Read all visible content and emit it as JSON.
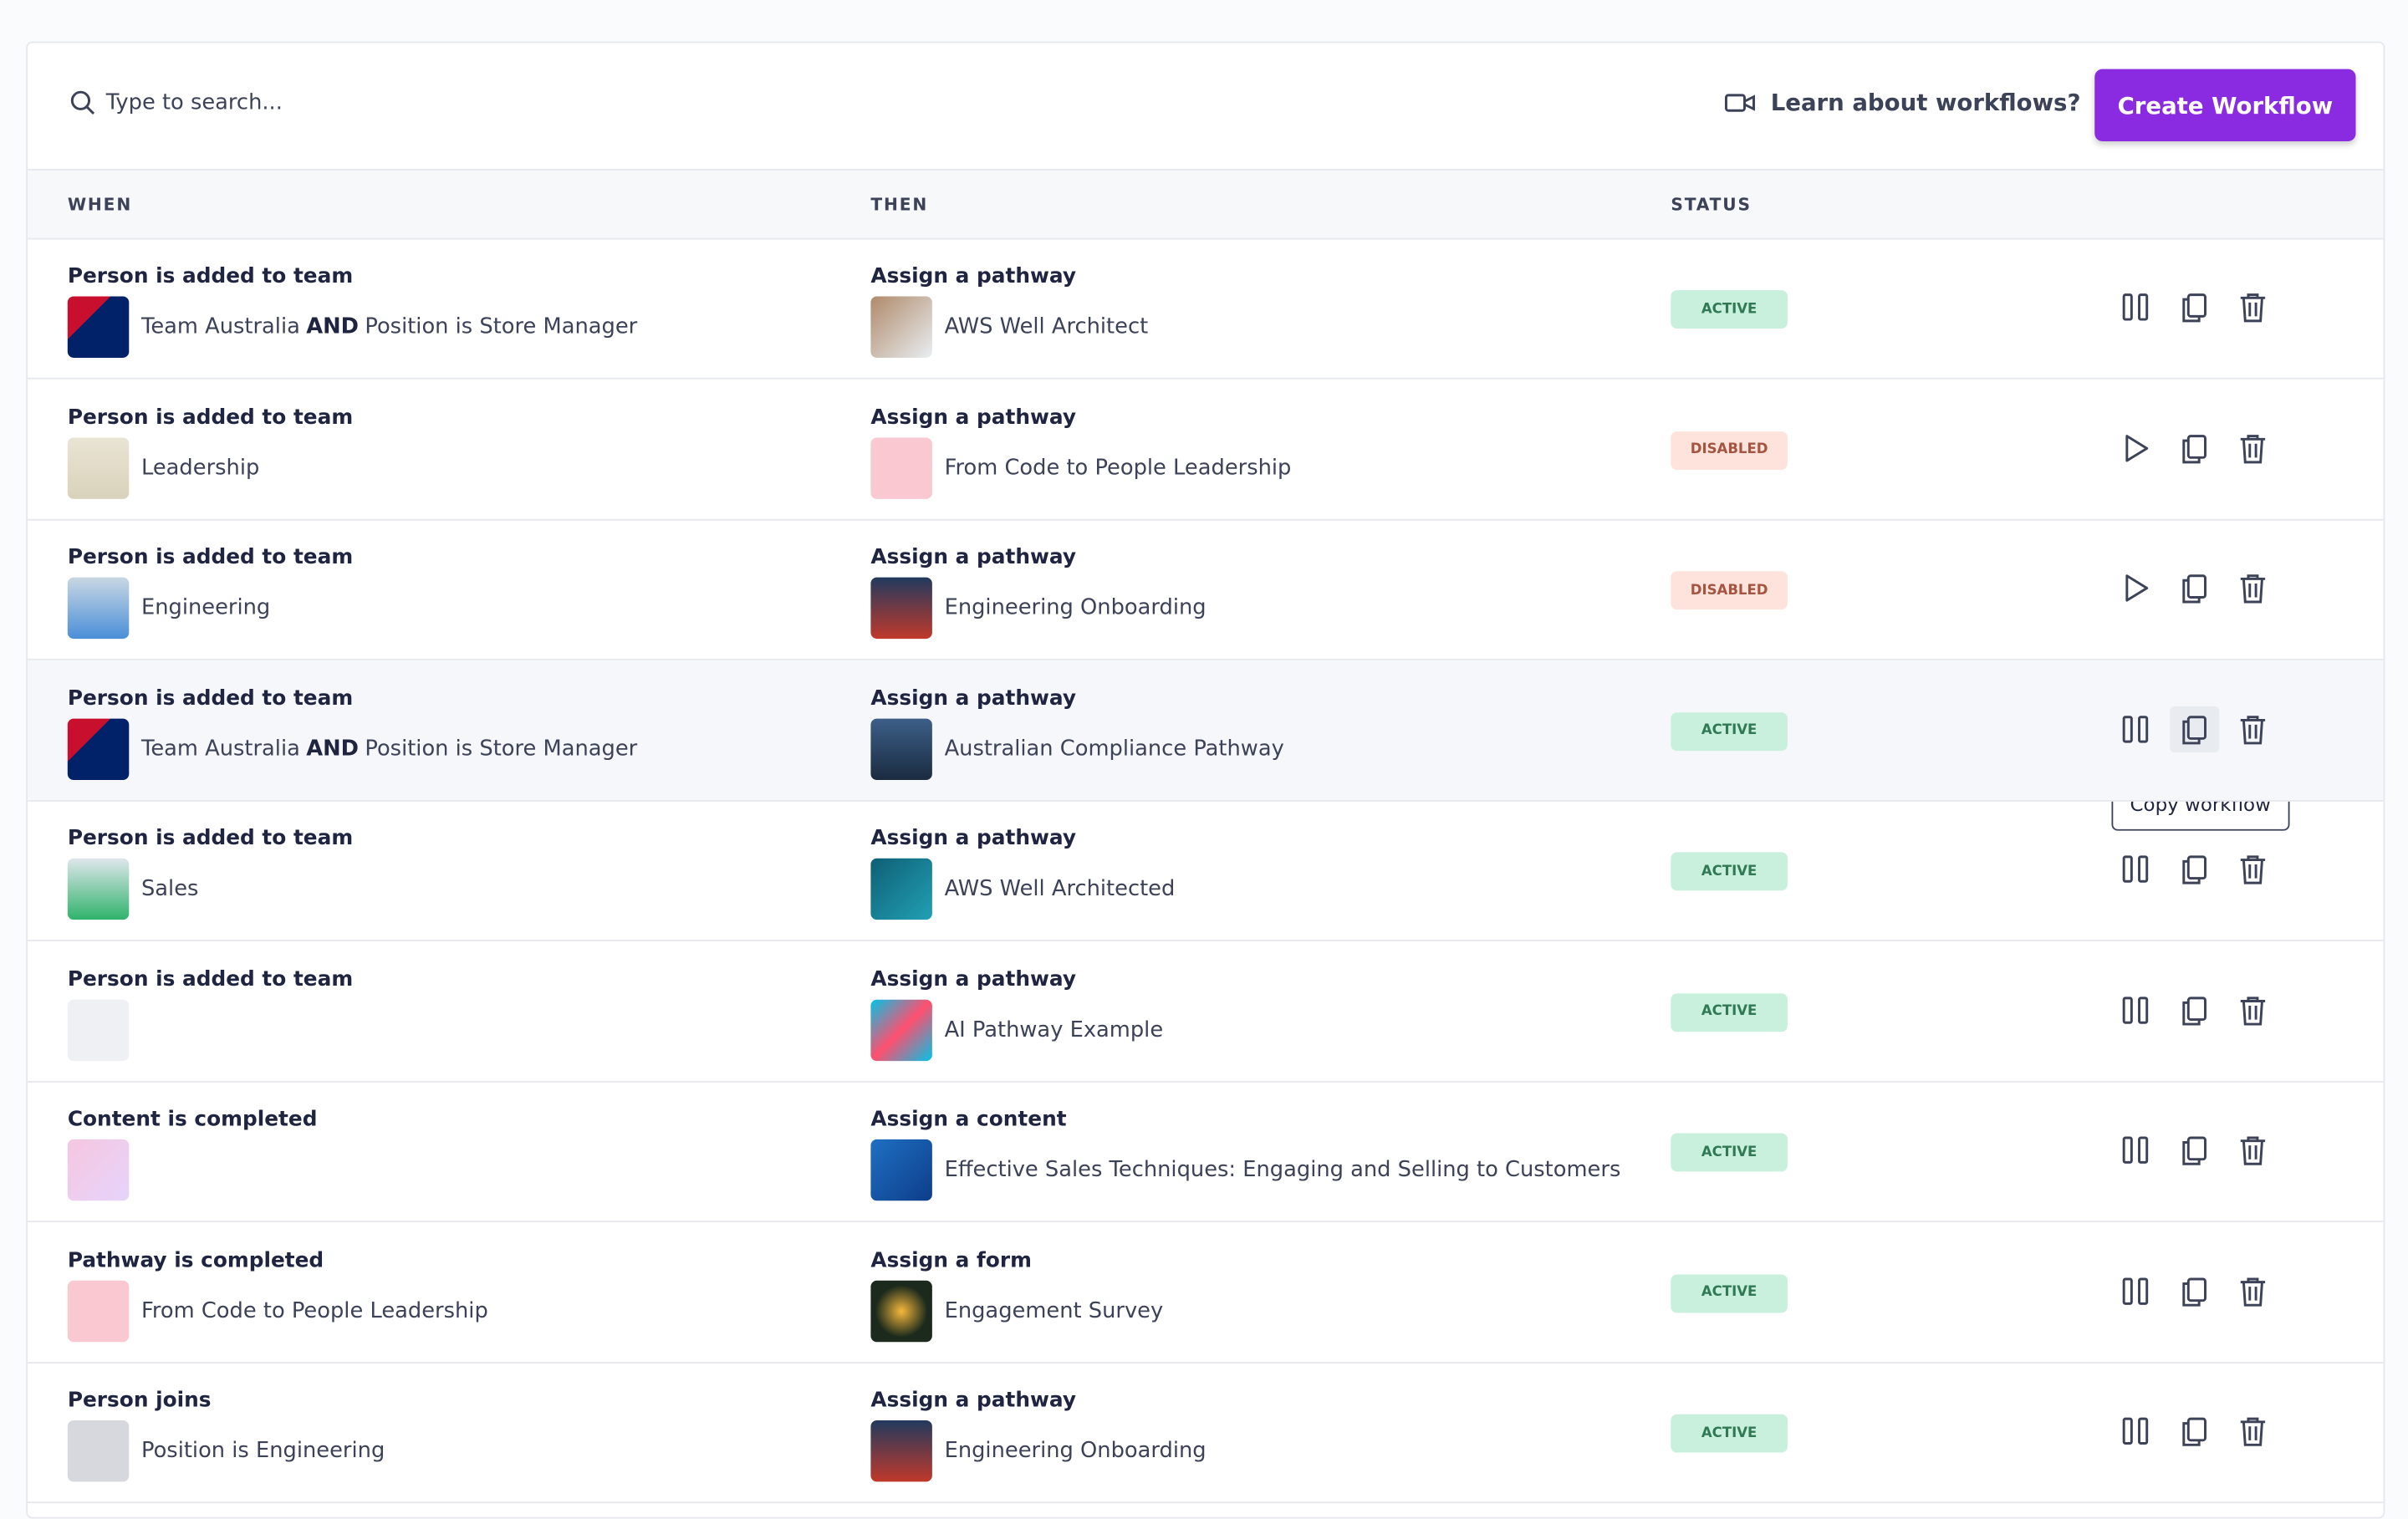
{
  "toolbar": {
    "search_placeholder": "Type to search...",
    "learn_link": "Learn about workflows?",
    "create_button": "Create Workflow"
  },
  "table": {
    "headers": [
      "WHEN",
      "THEN",
      "STATUS"
    ],
    "rows": [
      {
        "trigger": "Person is added to team",
        "trigger_detail": [
          {
            "text": "Team Australia"
          },
          {
            "text": "AND",
            "strong": true
          },
          {
            "text": "Position is Store Manager"
          }
        ],
        "action": "Assign a pathway",
        "action_detail": "AWS Well Architect",
        "status": "ACTIVE",
        "control": "pause"
      },
      {
        "trigger": "Person is added to team",
        "trigger_detail": [
          {
            "text": "Leadership"
          }
        ],
        "action": "Assign a pathway",
        "action_detail": "From Code to People Leadership",
        "status": "DISABLED",
        "control": "play"
      },
      {
        "trigger": "Person is added to team",
        "trigger_detail": [
          {
            "text": "Engineering"
          }
        ],
        "action": "Assign a pathway",
        "action_detail": "Engineering Onboarding",
        "status": "DISABLED",
        "control": "play"
      },
      {
        "trigger": "Person is added to team",
        "trigger_detail": [
          {
            "text": "Team Australia"
          },
          {
            "text": "AND",
            "strong": true
          },
          {
            "text": "Position is Store Manager"
          }
        ],
        "action": "Assign a pathway",
        "action_detail": "Australian Compliance Pathway",
        "status": "ACTIVE",
        "control": "pause"
      },
      {
        "trigger": "Person is added to team",
        "trigger_detail": [
          {
            "text": "Sales"
          }
        ],
        "action": "Assign a pathway",
        "action_detail": "AWS Well Architected",
        "status": "ACTIVE",
        "control": "pause"
      },
      {
        "trigger": "Person is added to team",
        "action": "Assign a pathway",
        "action_detail": "AI Pathway Example",
        "status": "ACTIVE",
        "control": "pause"
      },
      {
        "trigger": "Content is completed",
        "action": "Assign a content",
        "action_detail": "Effective Sales Techniques: Engaging and Selling to Customers",
        "status": "ACTIVE",
        "control": "pause"
      },
      {
        "trigger": "Pathway is completed",
        "trigger_detail": [
          {
            "text": "From Code to People Leadership"
          }
        ],
        "action": "Assign a form",
        "action_detail": "Engagement Survey",
        "status": "ACTIVE",
        "control": "pause"
      },
      {
        "trigger": "Person joins",
        "trigger_detail": [
          {
            "text": "Position is Engineering"
          }
        ],
        "action": "Assign a pathway",
        "action_detail": "Engineering Onboarding",
        "status": "ACTIVE",
        "control": "pause"
      }
    ]
  },
  "tooltip": "Copy workflow"
}
